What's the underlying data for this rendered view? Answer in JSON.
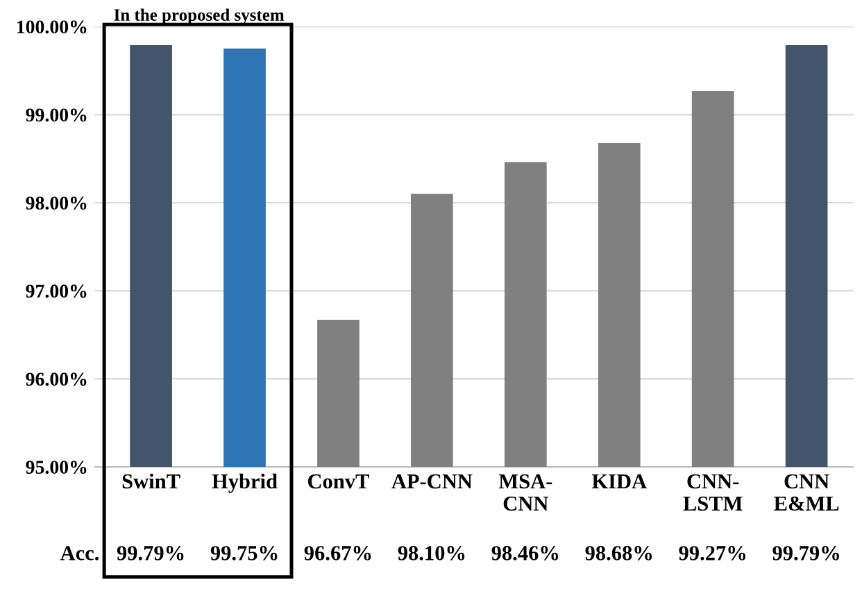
{
  "chart_data": {
    "type": "bar",
    "categories": [
      "SwinT",
      "Hybrid",
      "ConvT",
      "AP-CNN",
      "MSA-\nCNN",
      "KIDA",
      "CNN-\nLSTM",
      "CNN\nE&ML"
    ],
    "values": [
      99.79,
      99.75,
      96.67,
      98.1,
      98.46,
      98.68,
      99.27,
      99.79
    ],
    "colors": [
      "#44546a",
      "#2e75b6",
      "#808080",
      "#808080",
      "#808080",
      "#808080",
      "#808080",
      "#44546a"
    ],
    "value_labels": [
      "99.79%",
      "99.75%",
      "96.67%",
      "98.10%",
      "98.46%",
      "98.68%",
      "99.27%",
      "99.79%"
    ],
    "ylim": [
      95,
      100
    ],
    "yticks": [
      {
        "value": 95,
        "label": "95.00%"
      },
      {
        "value": 96,
        "label": "96.00%"
      },
      {
        "value": 97,
        "label": "97.00%"
      },
      {
        "value": 98,
        "label": "98.00%"
      },
      {
        "value": 99,
        "label": "99.00%"
      },
      {
        "value": 100,
        "label": "100.00%"
      }
    ],
    "grid": "y",
    "annotations": [
      "In the proposed system",
      "Acc."
    ]
  }
}
